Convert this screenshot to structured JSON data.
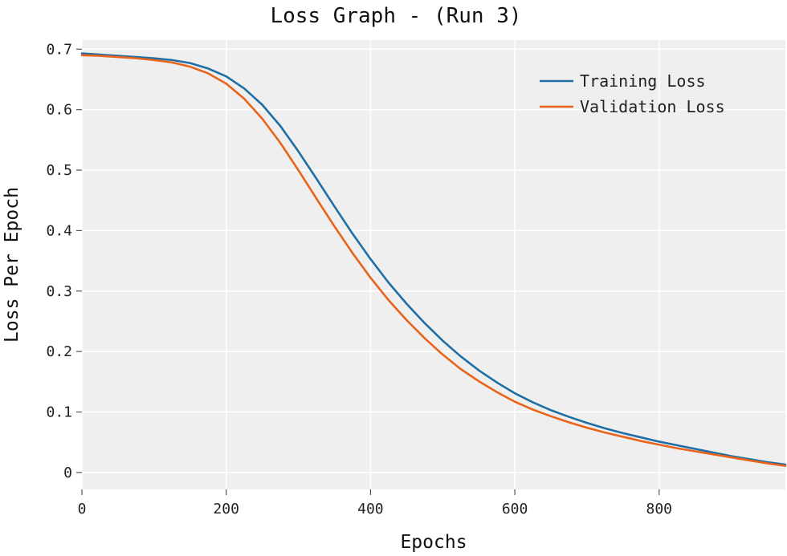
{
  "chart_data": {
    "type": "line",
    "title": "Loss Graph - (Run 3)",
    "xlabel": "Epochs",
    "ylabel": "Loss Per Epoch",
    "xlim": [
      0,
      975
    ],
    "ylim": [
      -0.028,
      0.715
    ],
    "x_ticks": [
      0,
      200,
      400,
      600,
      800
    ],
    "x_tick_labels": [
      "0",
      "200",
      "400",
      "600",
      "800"
    ],
    "y_ticks": [
      0,
      0.1,
      0.2,
      0.3,
      0.4,
      0.5,
      0.6,
      0.7
    ],
    "y_tick_labels": [
      "0",
      "0.1",
      "0.2",
      "0.3",
      "0.4",
      "0.5",
      "0.6",
      "0.7"
    ],
    "grid": true,
    "legend_position": "top-right",
    "background_color": "#efefef",
    "grid_color": "#ffffff",
    "series": [
      {
        "name": "Training Loss",
        "color": "#1f6fa5",
        "x": [
          0,
          25,
          50,
          75,
          100,
          125,
          150,
          175,
          200,
          225,
          250,
          275,
          300,
          325,
          350,
          375,
          400,
          425,
          450,
          475,
          500,
          525,
          550,
          575,
          600,
          625,
          650,
          675,
          700,
          725,
          750,
          775,
          800,
          825,
          850,
          875,
          900,
          925,
          950,
          975
        ],
        "values": [
          0.693,
          0.691,
          0.689,
          0.687,
          0.685,
          0.682,
          0.677,
          0.668,
          0.655,
          0.635,
          0.608,
          0.573,
          0.531,
          0.486,
          0.44,
          0.395,
          0.353,
          0.314,
          0.279,
          0.247,
          0.218,
          0.192,
          0.169,
          0.149,
          0.131,
          0.116,
          0.103,
          0.092,
          0.082,
          0.073,
          0.065,
          0.058,
          0.051,
          0.045,
          0.039,
          0.033,
          0.027,
          0.022,
          0.017,
          0.013
        ]
      },
      {
        "name": "Validation Loss",
        "color": "#e8641b",
        "x": [
          0,
          25,
          50,
          75,
          100,
          125,
          150,
          175,
          200,
          225,
          250,
          275,
          300,
          325,
          350,
          375,
          400,
          425,
          450,
          475,
          500,
          525,
          550,
          575,
          600,
          625,
          650,
          675,
          700,
          725,
          750,
          775,
          800,
          825,
          850,
          875,
          900,
          925,
          950,
          975
        ],
        "values": [
          0.69,
          0.689,
          0.687,
          0.685,
          0.682,
          0.678,
          0.671,
          0.66,
          0.643,
          0.618,
          0.585,
          0.545,
          0.5,
          0.453,
          0.407,
          0.363,
          0.322,
          0.285,
          0.252,
          0.222,
          0.195,
          0.171,
          0.151,
          0.133,
          0.117,
          0.104,
          0.093,
          0.083,
          0.074,
          0.066,
          0.059,
          0.052,
          0.046,
          0.04,
          0.035,
          0.03,
          0.025,
          0.02,
          0.015,
          0.011
        ]
      }
    ]
  }
}
